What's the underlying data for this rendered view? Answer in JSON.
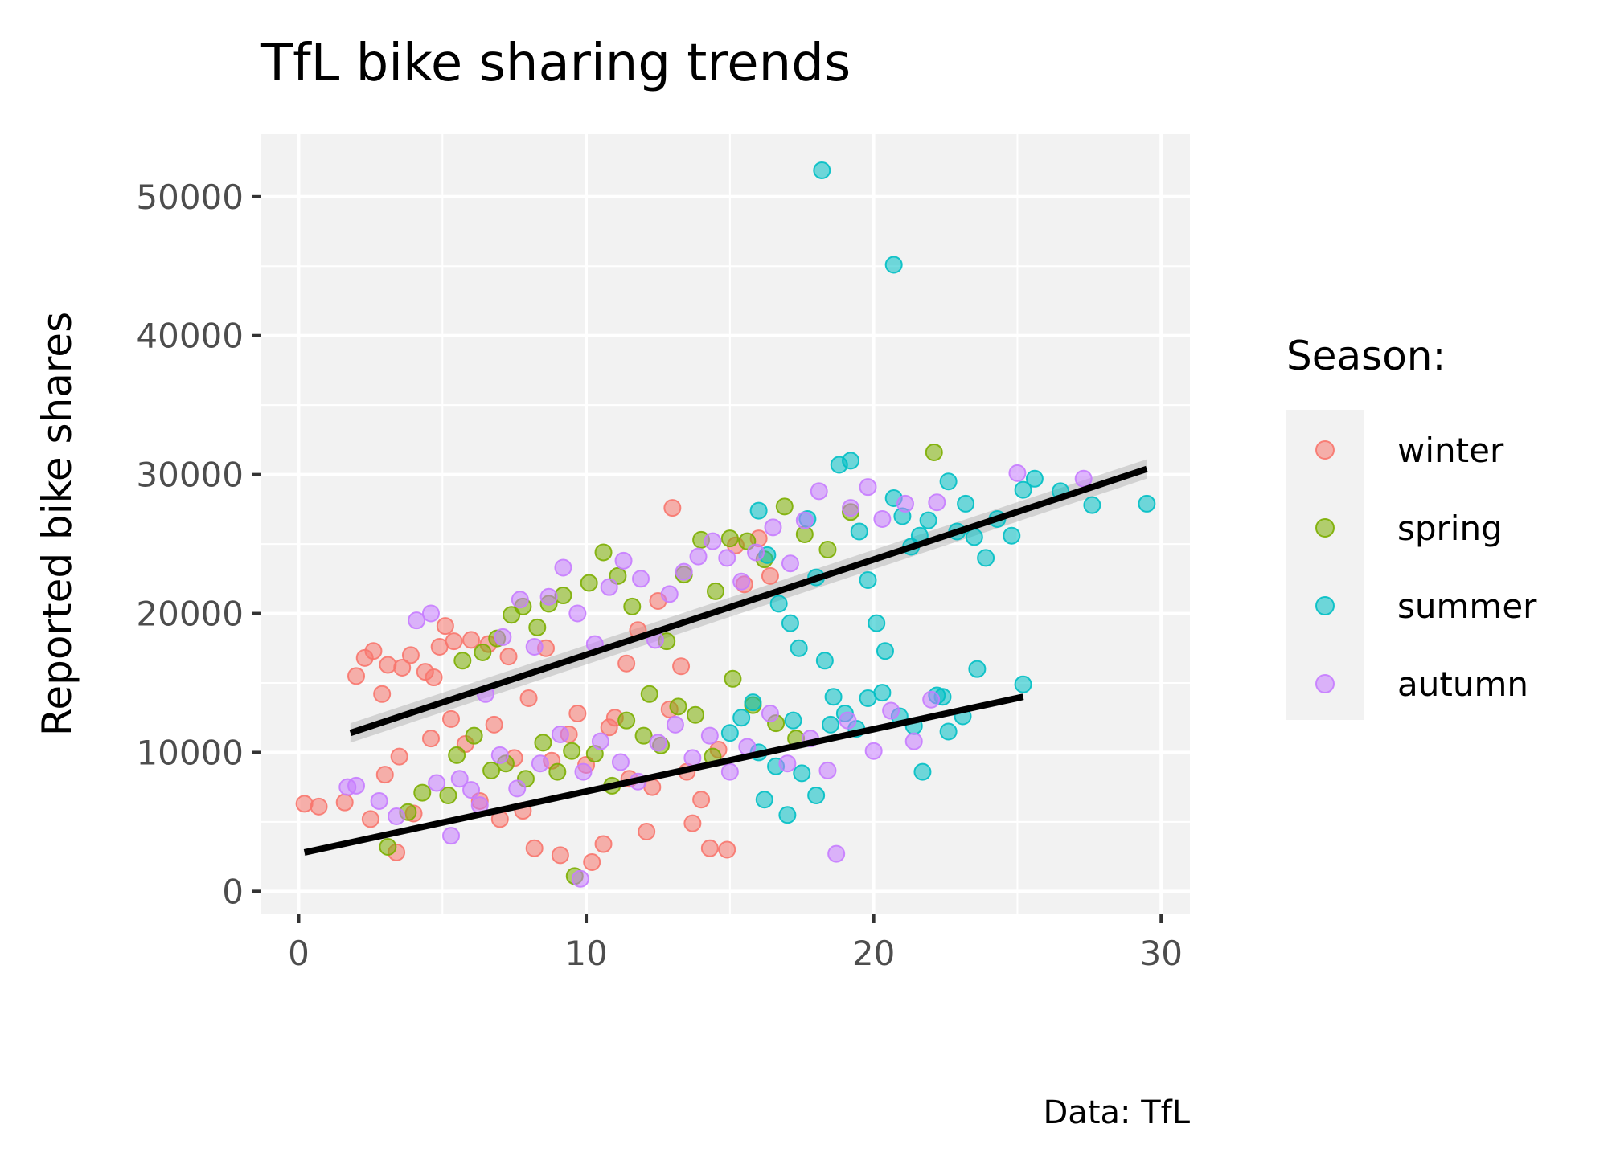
{
  "chart_data": {
    "type": "scatter",
    "title": "TfL bike sharing trends",
    "xlabel": "",
    "ylabel": "Reported bike shares",
    "caption": "Data: TfL",
    "xlim": [
      -1.3,
      31
    ],
    "ylim": [
      -1600,
      54500
    ],
    "x_ticks": [
      0,
      10,
      20,
      30
    ],
    "y_ticks": [
      0,
      10000,
      20000,
      30000,
      40000,
      50000
    ],
    "x_tick_labels": [
      "0",
      "10",
      "20",
      "30"
    ],
    "y_tick_labels": [
      "0",
      "10000",
      "20000",
      "30000",
      "40000",
      "50000"
    ],
    "grid": true,
    "legend": {
      "title": "Season:",
      "position": "right",
      "entries": [
        {
          "name": "winter",
          "color": "#F8766D"
        },
        {
          "name": "spring",
          "color": "#7CAE00"
        },
        {
          "name": "summer",
          "color": "#00BFC4"
        },
        {
          "name": "autumn",
          "color": "#C77CFF"
        }
      ]
    },
    "series": [
      {
        "name": "winter",
        "color": "#F8766D",
        "points": [
          [
            0.2,
            6300
          ],
          [
            0.7,
            6100
          ],
          [
            1.6,
            6400
          ],
          [
            2.0,
            15500
          ],
          [
            2.3,
            16800
          ],
          [
            2.6,
            17300
          ],
          [
            2.9,
            14200
          ],
          [
            3.1,
            16300
          ],
          [
            3.4,
            2800
          ],
          [
            3.6,
            16100
          ],
          [
            3.9,
            17000
          ],
          [
            4.4,
            15800
          ],
          [
            4.7,
            15400
          ],
          [
            4.9,
            17600
          ],
          [
            5.1,
            19100
          ],
          [
            5.4,
            18000
          ],
          [
            6.0,
            18100
          ],
          [
            6.3,
            6500
          ],
          [
            6.6,
            17800
          ],
          [
            7.0,
            5200
          ],
          [
            7.3,
            16900
          ],
          [
            7.8,
            5800
          ],
          [
            8.2,
            3100
          ],
          [
            8.6,
            17500
          ],
          [
            9.1,
            2600
          ],
          [
            9.7,
            12800
          ],
          [
            10.2,
            2100
          ],
          [
            10.6,
            3400
          ],
          [
            11.0,
            12500
          ],
          [
            11.4,
            16400
          ],
          [
            11.8,
            18800
          ],
          [
            12.1,
            4300
          ],
          [
            12.5,
            20900
          ],
          [
            13.0,
            27600
          ],
          [
            13.3,
            16200
          ],
          [
            13.7,
            4900
          ],
          [
            14.3,
            3100
          ],
          [
            14.9,
            3000
          ],
          [
            15.2,
            24900
          ],
          [
            2.5,
            5200
          ],
          [
            3.0,
            8400
          ],
          [
            3.5,
            9700
          ],
          [
            4.0,
            5600
          ],
          [
            4.6,
            11000
          ],
          [
            5.3,
            12400
          ],
          [
            5.8,
            10600
          ],
          [
            6.8,
            12000
          ],
          [
            7.5,
            9600
          ],
          [
            8.0,
            13900
          ],
          [
            8.8,
            9400
          ],
          [
            9.4,
            11300
          ],
          [
            10.0,
            9100
          ],
          [
            10.8,
            11800
          ],
          [
            11.5,
            8100
          ],
          [
            12.3,
            7500
          ],
          [
            12.9,
            13100
          ],
          [
            13.5,
            8600
          ],
          [
            14.0,
            6600
          ],
          [
            14.6,
            10200
          ],
          [
            15.5,
            22100
          ],
          [
            16.0,
            25400
          ],
          [
            16.4,
            22700
          ]
        ]
      },
      {
        "name": "spring",
        "color": "#7CAE00",
        "points": [
          [
            3.1,
            3200
          ],
          [
            3.8,
            5700
          ],
          [
            4.3,
            7100
          ],
          [
            5.2,
            6900
          ],
          [
            5.7,
            16600
          ],
          [
            6.4,
            17200
          ],
          [
            6.9,
            18200
          ],
          [
            7.4,
            19900
          ],
          [
            7.8,
            20500
          ],
          [
            8.3,
            19000
          ],
          [
            8.7,
            20700
          ],
          [
            9.2,
            21300
          ],
          [
            9.6,
            1100
          ],
          [
            10.1,
            22200
          ],
          [
            10.6,
            24400
          ],
          [
            11.1,
            22700
          ],
          [
            11.6,
            20500
          ],
          [
            12.2,
            14200
          ],
          [
            12.8,
            18000
          ],
          [
            13.4,
            22800
          ],
          [
            14.0,
            25300
          ],
          [
            14.5,
            21600
          ],
          [
            15.0,
            25400
          ],
          [
            15.6,
            25200
          ],
          [
            16.2,
            23900
          ],
          [
            16.9,
            27700
          ],
          [
            17.6,
            25700
          ],
          [
            18.4,
            24600
          ],
          [
            19.2,
            27300
          ],
          [
            22.1,
            31600
          ],
          [
            5.5,
            9800
          ],
          [
            6.1,
            11200
          ],
          [
            6.7,
            8700
          ],
          [
            7.2,
            9200
          ],
          [
            7.9,
            8100
          ],
          [
            8.5,
            10700
          ],
          [
            9.0,
            8600
          ],
          [
            9.5,
            10100
          ],
          [
            10.3,
            9900
          ],
          [
            10.9,
            7600
          ],
          [
            11.4,
            12300
          ],
          [
            12.0,
            11200
          ],
          [
            12.6,
            10500
          ],
          [
            13.2,
            13300
          ],
          [
            13.8,
            12700
          ],
          [
            14.4,
            9700
          ],
          [
            15.1,
            15300
          ],
          [
            15.8,
            13400
          ],
          [
            16.6,
            12100
          ],
          [
            17.3,
            11000
          ]
        ]
      },
      {
        "name": "summer",
        "color": "#00BFC4",
        "points": [
          [
            18.2,
            51900
          ],
          [
            20.7,
            45100
          ],
          [
            15.0,
            11400
          ],
          [
            15.4,
            12500
          ],
          [
            15.8,
            13600
          ],
          [
            16.0,
            27400
          ],
          [
            16.3,
            24200
          ],
          [
            16.7,
            20700
          ],
          [
            17.1,
            19300
          ],
          [
            17.4,
            17500
          ],
          [
            17.7,
            26800
          ],
          [
            18.0,
            22600
          ],
          [
            18.3,
            16600
          ],
          [
            18.6,
            14000
          ],
          [
            18.8,
            30700
          ],
          [
            19.2,
            31000
          ],
          [
            19.5,
            25900
          ],
          [
            19.8,
            22400
          ],
          [
            20.1,
            19300
          ],
          [
            20.4,
            17300
          ],
          [
            20.7,
            28300
          ],
          [
            21.0,
            27000
          ],
          [
            21.3,
            24800
          ],
          [
            21.6,
            25600
          ],
          [
            21.9,
            26700
          ],
          [
            22.2,
            14100
          ],
          [
            22.6,
            29500
          ],
          [
            22.9,
            25900
          ],
          [
            23.2,
            27900
          ],
          [
            23.5,
            25500
          ],
          [
            23.9,
            24000
          ],
          [
            24.3,
            26800
          ],
          [
            24.8,
            25600
          ],
          [
            25.2,
            28900
          ],
          [
            25.6,
            29700
          ],
          [
            26.5,
            28800
          ],
          [
            27.6,
            27800
          ],
          [
            29.5,
            27900
          ],
          [
            16.2,
            6600
          ],
          [
            17.0,
            5500
          ],
          [
            17.5,
            8500
          ],
          [
            18.0,
            6900
          ],
          [
            18.5,
            12000
          ],
          [
            19.0,
            12800
          ],
          [
            19.4,
            11700
          ],
          [
            19.8,
            13900
          ],
          [
            20.3,
            14300
          ],
          [
            20.9,
            12600
          ],
          [
            21.4,
            11900
          ],
          [
            21.7,
            8600
          ],
          [
            22.4,
            14000
          ],
          [
            23.1,
            12600
          ],
          [
            23.6,
            16000
          ],
          [
            25.2,
            14900
          ],
          [
            22.6,
            11500
          ],
          [
            16.0,
            10000
          ],
          [
            16.6,
            9000
          ],
          [
            17.2,
            12300
          ]
        ]
      },
      {
        "name": "autumn",
        "color": "#C77CFF",
        "points": [
          [
            1.7,
            7500
          ],
          [
            2.0,
            7600
          ],
          [
            2.8,
            6500
          ],
          [
            3.4,
            5400
          ],
          [
            4.1,
            19500
          ],
          [
            4.6,
            20000
          ],
          [
            5.3,
            4000
          ],
          [
            6.0,
            7300
          ],
          [
            6.5,
            14200
          ],
          [
            7.1,
            18300
          ],
          [
            7.7,
            21000
          ],
          [
            8.2,
            17600
          ],
          [
            8.7,
            21200
          ],
          [
            9.2,
            23300
          ],
          [
            9.7,
            20000
          ],
          [
            10.3,
            17800
          ],
          [
            10.8,
            21900
          ],
          [
            11.3,
            23800
          ],
          [
            11.9,
            22500
          ],
          [
            12.4,
            18100
          ],
          [
            12.9,
            21400
          ],
          [
            13.4,
            23000
          ],
          [
            13.9,
            24100
          ],
          [
            14.4,
            25200
          ],
          [
            14.9,
            24000
          ],
          [
            15.4,
            22300
          ],
          [
            15.9,
            24400
          ],
          [
            16.5,
            26200
          ],
          [
            17.1,
            23600
          ],
          [
            17.6,
            26700
          ],
          [
            18.1,
            28800
          ],
          [
            18.7,
            2700
          ],
          [
            19.2,
            27600
          ],
          [
            19.8,
            29100
          ],
          [
            20.3,
            26800
          ],
          [
            21.1,
            27900
          ],
          [
            22.2,
            28000
          ],
          [
            25.0,
            30100
          ],
          [
            27.3,
            29700
          ],
          [
            9.8,
            900
          ],
          [
            4.8,
            7800
          ],
          [
            5.6,
            8100
          ],
          [
            6.3,
            6200
          ],
          [
            7.0,
            9800
          ],
          [
            7.6,
            7400
          ],
          [
            8.4,
            9200
          ],
          [
            9.1,
            11300
          ],
          [
            9.9,
            8600
          ],
          [
            10.5,
            10800
          ],
          [
            11.2,
            9300
          ],
          [
            11.8,
            7900
          ],
          [
            12.5,
            10700
          ],
          [
            13.1,
            12000
          ],
          [
            13.7,
            9600
          ],
          [
            14.3,
            11200
          ],
          [
            15.0,
            8600
          ],
          [
            15.6,
            10400
          ],
          [
            16.4,
            12800
          ],
          [
            17.0,
            9200
          ],
          [
            17.8,
            11000
          ],
          [
            18.4,
            8700
          ],
          [
            19.1,
            12300
          ],
          [
            20.0,
            10100
          ],
          [
            20.6,
            13000
          ],
          [
            21.4,
            10800
          ],
          [
            22.0,
            13800
          ]
        ]
      }
    ],
    "trend_lines": [
      {
        "x": [
          1.8,
          29.5
        ],
        "y": [
          11400,
          30400
        ],
        "band": 700
      },
      {
        "x": [
          0.2,
          25.2
        ],
        "y": [
          2800,
          14000
        ],
        "band": 250
      }
    ]
  }
}
